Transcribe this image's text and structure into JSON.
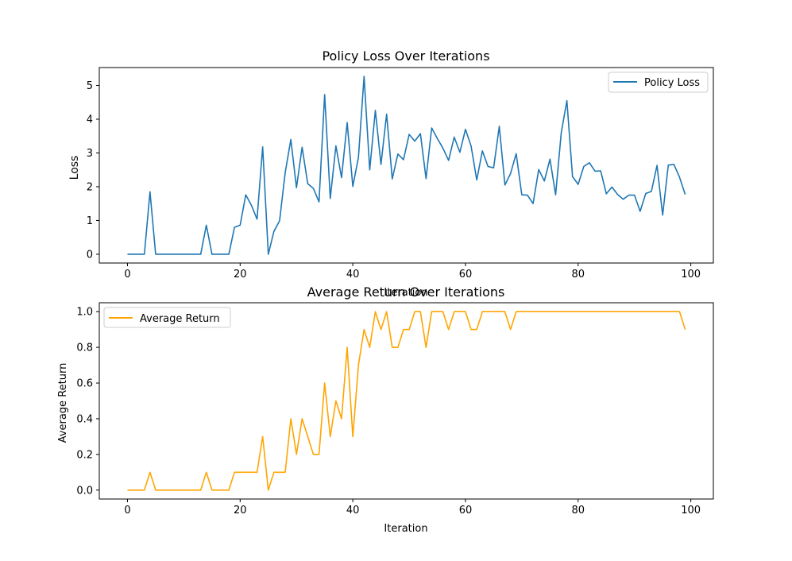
{
  "chart_data": [
    {
      "type": "line",
      "title": "Policy Loss Over Iterations",
      "xlabel": "Iteration",
      "ylabel": "Loss",
      "xlim": [
        -5,
        104
      ],
      "ylim": [
        -0.26,
        5.53
      ],
      "xticks": [
        0,
        20,
        40,
        60,
        80,
        100
      ],
      "yticks": [
        0,
        1,
        2,
        3,
        4,
        5
      ],
      "ytick_labels": [
        "0",
        "1",
        "2",
        "3",
        "4",
        "5"
      ],
      "legend_position": "top-right",
      "grid": false,
      "series": [
        {
          "name": "Policy Loss",
          "color": "#1f77b4",
          "x": [
            0,
            1,
            2,
            3,
            4,
            5,
            6,
            7,
            8,
            9,
            10,
            11,
            12,
            13,
            14,
            15,
            16,
            17,
            18,
            19,
            20,
            21,
            22,
            23,
            24,
            25,
            26,
            27,
            28,
            29,
            30,
            31,
            32,
            33,
            34,
            35,
            36,
            37,
            38,
            39,
            40,
            41,
            42,
            43,
            44,
            45,
            46,
            47,
            48,
            49,
            50,
            51,
            52,
            53,
            54,
            55,
            56,
            57,
            58,
            59,
            60,
            61,
            62,
            63,
            64,
            65,
            66,
            67,
            68,
            69,
            70,
            71,
            72,
            73,
            74,
            75,
            76,
            77,
            78,
            79,
            80,
            81,
            82,
            83,
            84,
            85,
            86,
            87,
            88,
            89,
            90,
            91,
            92,
            93,
            94,
            95,
            96,
            97,
            98,
            99
          ],
          "values": [
            0,
            0,
            0,
            0,
            1.85,
            0,
            0,
            0,
            0,
            0,
            0,
            0,
            0,
            0,
            0.86,
            0,
            0,
            0,
            0,
            0.8,
            0.86,
            1.76,
            1.45,
            1.04,
            3.18,
            0,
            0.68,
            0.99,
            2.42,
            3.4,
            1.97,
            3.17,
            2.09,
            1.95,
            1.55,
            4.73,
            1.65,
            3.21,
            2.27,
            3.9,
            2.01,
            2.87,
            5.27,
            2.5,
            4.26,
            2.66,
            4.15,
            2.23,
            2.97,
            2.8,
            3.55,
            3.35,
            3.57,
            2.24,
            3.74,
            3.43,
            3.14,
            2.78,
            3.47,
            3.02,
            3.7,
            3.2,
            2.2,
            3.06,
            2.6,
            2.56,
            3.79,
            2.05,
            2.39,
            2.98,
            1.76,
            1.75,
            1.5,
            2.51,
            2.17,
            2.82,
            1.76,
            3.6,
            4.55,
            2.3,
            2.07,
            2.6,
            2.71,
            2.46,
            2.47,
            1.79,
            1.99,
            1.77,
            1.63,
            1.75,
            1.75,
            1.27,
            1.8,
            1.86,
            2.63,
            1.16,
            2.64,
            2.66,
            2.28,
            1.77
          ]
        }
      ]
    },
    {
      "type": "line",
      "title": "Average Return Over Iterations",
      "xlabel": "Iteration",
      "ylabel": "Average Return",
      "xlim": [
        -5,
        104
      ],
      "ylim": [
        -0.05,
        1.05
      ],
      "xticks": [
        0,
        20,
        40,
        60,
        80,
        100
      ],
      "yticks": [
        0,
        0.2,
        0.4,
        0.6,
        0.8,
        1.0
      ],
      "ytick_labels": [
        "0.0",
        "0.2",
        "0.4",
        "0.6",
        "0.8",
        "1.0"
      ],
      "legend_position": "top-left",
      "grid": false,
      "series": [
        {
          "name": "Average Return",
          "color": "#ffa500",
          "x": [
            0,
            1,
            2,
            3,
            4,
            5,
            6,
            7,
            8,
            9,
            10,
            11,
            12,
            13,
            14,
            15,
            16,
            17,
            18,
            19,
            20,
            21,
            22,
            23,
            24,
            25,
            26,
            27,
            28,
            29,
            30,
            31,
            32,
            33,
            34,
            35,
            36,
            37,
            38,
            39,
            40,
            41,
            42,
            43,
            44,
            45,
            46,
            47,
            48,
            49,
            50,
            51,
            52,
            53,
            54,
            55,
            56,
            57,
            58,
            59,
            60,
            61,
            62,
            63,
            64,
            65,
            66,
            67,
            68,
            69,
            70,
            71,
            72,
            73,
            74,
            75,
            76,
            77,
            78,
            79,
            80,
            81,
            82,
            83,
            84,
            85,
            86,
            87,
            88,
            89,
            90,
            91,
            92,
            93,
            94,
            95,
            96,
            97,
            98,
            99
          ],
          "values": [
            0,
            0,
            0,
            0,
            0.1,
            0,
            0,
            0,
            0,
            0,
            0,
            0,
            0,
            0,
            0.1,
            0,
            0,
            0,
            0,
            0.1,
            0.1,
            0.1,
            0.1,
            0.1,
            0.3,
            0,
            0.1,
            0.1,
            0.1,
            0.4,
            0.2,
            0.4,
            0.3,
            0.2,
            0.2,
            0.6,
            0.3,
            0.5,
            0.4,
            0.8,
            0.3,
            0.7,
            0.9,
            0.8,
            1,
            0.9,
            1,
            0.8,
            0.8,
            0.9,
            0.9,
            1,
            1,
            0.8,
            1,
            1,
            1,
            0.9,
            1,
            1,
            1,
            0.9,
            0.9,
            1,
            1,
            1,
            1,
            1,
            0.9,
            1,
            1,
            1,
            1,
            1,
            1,
            1,
            1,
            1,
            1,
            1,
            1,
            1,
            1,
            1,
            1,
            1,
            1,
            1,
            1,
            1,
            1,
            1,
            1,
            1,
            1,
            1,
            1,
            1,
            1,
            0.9
          ]
        }
      ]
    }
  ]
}
